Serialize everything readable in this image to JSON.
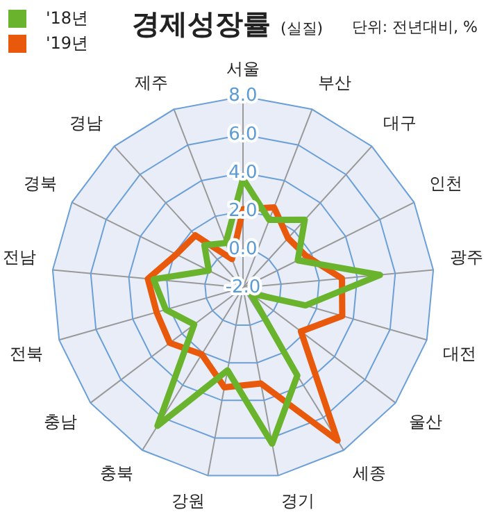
{
  "chart_data": {
    "type": "radar",
    "title": "경제성장률",
    "subtitle": "(실질)",
    "annotations": [
      "단위: 전년대비, %"
    ],
    "categories": [
      "서울",
      "부산",
      "대구",
      "인천",
      "광주",
      "대전",
      "울산",
      "세종",
      "경기",
      "강원",
      "충북",
      "충남",
      "전북",
      "전남",
      "경북",
      "경남",
      "제주"
    ],
    "series": [
      {
        "name": "'18년",
        "color": "#6ab42d",
        "values": [
          3.7,
          1.8,
          2.8,
          1.2,
          5.2,
          1.4,
          -1.5,
          3.4,
          6.3,
          2.4,
          6.5,
          1.2,
          2.2,
          2.7,
          0.0,
          1.0,
          0.5
        ]
      },
      {
        "name": "'19년",
        "color": "#e8590c",
        "values": [
          2.1,
          2.5,
          1.5,
          1.7,
          3.2,
          3.4,
          1.8,
          7.4,
          3.1,
          3.3,
          2.1,
          2.8,
          2.7,
          3.0,
          1.9,
          1.7,
          -0.4
        ]
      }
    ],
    "ylim": [
      -2,
      8
    ],
    "yticks": [
      {
        "value": -2,
        "label": "-2.0"
      },
      {
        "value": 0,
        "label": "0.0"
      },
      {
        "value": 2,
        "label": "2.0"
      },
      {
        "value": 4,
        "label": "4.0"
      },
      {
        "value": 6,
        "label": "6.0"
      },
      {
        "value": 8,
        "label": "8.0"
      }
    ],
    "grid": true,
    "legend": "top left",
    "marker": "none",
    "line_style": "solid"
  }
}
